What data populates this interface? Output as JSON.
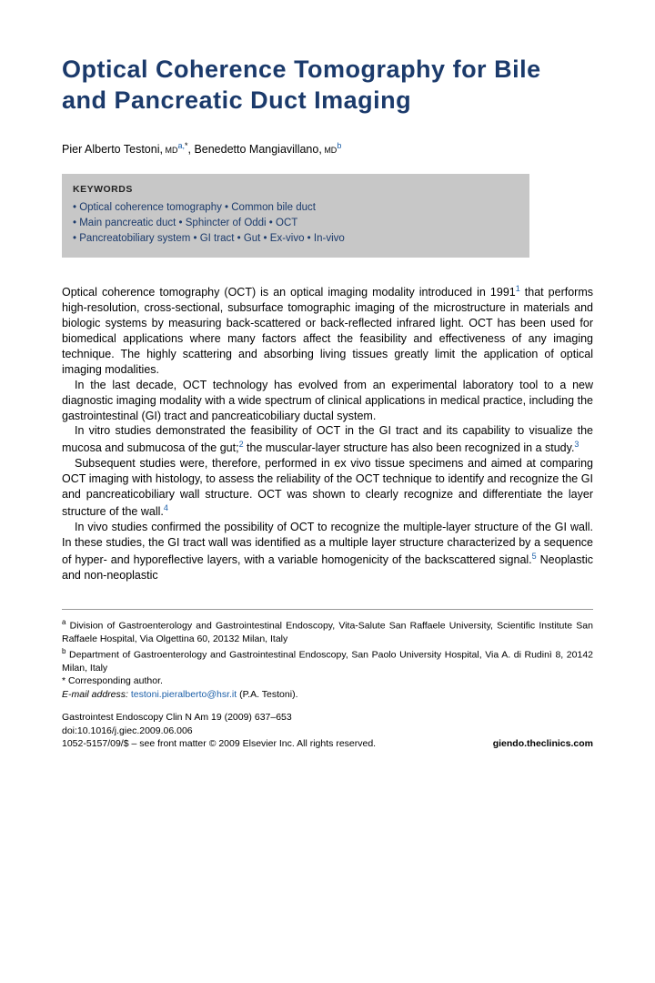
{
  "title": "Optical Coherence Tomography for Bile and Pancreatic Duct Imaging",
  "authors": {
    "a1_name": "Pier Alberto Testoni,",
    "a1_degree": " MD",
    "a1_sup": "a,",
    "a1_star": "*",
    "sep": ", ",
    "a2_name": "Benedetto Mangiavillano,",
    "a2_degree": " MD",
    "a2_sup": "b"
  },
  "keywords": {
    "heading": "KEYWORDS",
    "line1": "• Optical coherence tomography • Common bile duct",
    "line2": "• Main pancreatic duct • Sphincter of Oddi • OCT",
    "line3": "• Pancreatobiliary system • GI tract • Gut • Ex-vivo • In-vivo"
  },
  "body": {
    "p1a": "Optical coherence tomography (OCT) is an optical imaging modality introduced in 1991",
    "p1ref1": "1",
    "p1b": " that performs high-resolution, cross-sectional, subsurface tomographic imaging of the microstructure in materials and biologic systems by measuring back-scattered or back-reflected infrared light. OCT has been used for biomedical applications where many factors affect the feasibility and effectiveness of any imaging technique. The highly scattering and absorbing living tissues greatly limit the application of optical imaging modalities.",
    "p2": "In the last decade, OCT technology has evolved from an experimental laboratory tool to a new diagnostic imaging modality with a wide spectrum of clinical applications in medical practice, including the gastrointestinal (GI) tract and pancreaticobiliary ductal system.",
    "p3a": "In vitro studies demonstrated the feasibility of OCT in the GI tract and its capability to visualize the mucosa and submucosa of the gut;",
    "p3ref2": "2",
    "p3b": " the muscular-layer structure has also been recognized in a study.",
    "p3ref3": "3",
    "p4a": "Subsequent studies were, therefore, performed in ex vivo tissue specimens and aimed at comparing OCT imaging with histology, to assess the reliability of the OCT technique to identify and recognize the GI and pancreaticobiliary wall structure. OCT was shown to clearly recognize and differentiate the layer structure of the wall.",
    "p4ref4": "4",
    "p5a": "In vivo studies confirmed the possibility of OCT to recognize the multiple-layer structure of the GI wall. In these studies, the GI tract wall was identified as a multiple layer structure characterized by a sequence of hyper- and hyporeflective layers, with a variable homogenicity of the backscattered signal.",
    "p5ref5": "5",
    "p5b": " Neoplastic and non-neoplastic"
  },
  "footnotes": {
    "aff_a_sup": "a",
    "aff_a": " Division of Gastroenterology and Gastrointestinal Endoscopy, Vita-Salute San Raffaele University, Scientific Institute San Raffaele Hospital, Via Olgettina 60, 20132 Milan, Italy",
    "aff_b_sup": "b",
    "aff_b": " Department of Gastroenterology and Gastrointestinal Endoscopy, San Paolo University Hospital, Via A. di Rudinì 8, 20142 Milan, Italy",
    "corr": "* Corresponding author.",
    "email_label": "E-mail address: ",
    "email": "testoni.pieralberto@hsr.it",
    "email_after": " (P.A. Testoni).",
    "journal_line1": "Gastrointest Endoscopy Clin N Am 19 (2009) 637–653",
    "doi": "doi:10.1016/j.giec.2009.06.006",
    "site": "giendo.theclinics.com",
    "issn_line": "1052-5157/09/$ – see front matter © 2009 Elsevier Inc. All rights reserved."
  }
}
